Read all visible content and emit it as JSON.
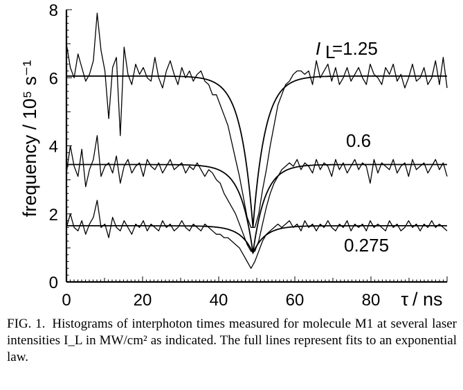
{
  "chart_data": {
    "type": "line",
    "title": "",
    "xlabel_symbol": "τ",
    "xlabel_unit": "/ ns",
    "ylabel": "frequency / 10⁵ s⁻¹",
    "xlim": [
      0,
      100
    ],
    "ylim": [
      0,
      8
    ],
    "xticks": [
      "0",
      "20",
      "40",
      "60",
      "80"
    ],
    "xtick_values": [
      0,
      20,
      40,
      60,
      80
    ],
    "yticks": [
      "0",
      "2",
      "4",
      "6",
      "8"
    ],
    "ytick_values": [
      0,
      2,
      4,
      6,
      8
    ],
    "series_label_prefix": "I",
    "series_label_sub": "L",
    "series": [
      {
        "name": "1.25",
        "label_text": "=1.25",
        "fit": {
          "baseline": 6.05,
          "center": 49,
          "depth": 4.45,
          "tau": 3.2
        },
        "data": [
          7.0,
          6.3,
          6.0,
          6.7,
          6.3,
          5.9,
          6.1,
          6.5,
          7.9,
          6.8,
          6.2,
          4.8,
          6.3,
          6.6,
          4.3,
          6.9,
          6.1,
          5.8,
          6.4,
          6.1,
          6.3,
          6.0,
          5.9,
          6.6,
          6.0,
          5.7,
          6.2,
          6.5,
          6.1,
          5.8,
          6.3,
          6.0,
          6.2,
          5.9,
          6.1,
          6.2,
          5.9,
          5.8,
          5.5,
          5.5,
          5.2,
          4.9,
          4.6,
          4.1,
          3.6,
          3.1,
          2.5,
          1.9,
          1.6,
          1.6,
          2.0,
          2.7,
          3.3,
          4.0,
          4.6,
          5.2,
          5.5,
          5.8,
          5.9,
          6.1,
          6.2,
          6.2,
          6.1,
          6.2,
          5.8,
          6.5,
          6.0,
          6.2,
          6.4,
          5.9,
          6.3,
          5.8,
          6.0,
          6.3,
          5.9,
          6.1,
          6.3,
          6.0,
          5.8,
          6.4,
          6.1,
          6.0,
          5.8,
          6.3,
          6.1,
          6.4,
          5.9,
          6.1,
          5.7,
          6.0,
          6.4,
          5.9,
          6.0,
          6.3,
          5.8,
          6.0,
          6.5,
          5.8,
          6.6,
          5.7
        ]
      },
      {
        "name": "0.6",
        "label_text": "0.6",
        "fit": {
          "baseline": 3.45,
          "center": 49,
          "depth": 2.6,
          "tau": 3.2
        },
        "data": [
          3.2,
          4.0,
          3.4,
          3.1,
          3.9,
          2.8,
          3.3,
          3.6,
          4.3,
          3.1,
          3.4,
          3.5,
          3.2,
          3.7,
          2.9,
          3.4,
          3.6,
          3.2,
          3.4,
          3.5,
          3.1,
          3.6,
          3.4,
          3.3,
          3.5,
          3.2,
          3.4,
          3.6,
          3.3,
          3.4,
          3.5,
          3.2,
          3.4,
          3.3,
          3.5,
          3.3,
          3.1,
          3.3,
          3.2,
          3.0,
          2.9,
          2.6,
          2.4,
          2.2,
          2.0,
          1.7,
          1.4,
          1.1,
          0.9,
          0.9,
          1.2,
          1.7,
          2.2,
          2.6,
          2.9,
          3.1,
          3.3,
          3.4,
          3.5,
          3.4,
          3.6,
          3.3,
          3.5,
          3.4,
          3.2,
          3.6,
          3.3,
          3.5,
          3.4,
          3.1,
          3.6,
          3.3,
          3.5,
          3.2,
          3.4,
          3.6,
          3.3,
          3.5,
          3.4,
          2.9,
          3.6,
          3.2,
          3.5,
          3.4,
          3.3,
          3.6,
          3.2,
          3.4,
          3.5,
          3.1,
          3.6,
          3.3,
          3.4,
          3.5,
          3.2,
          3.4,
          3.6,
          3.3,
          3.5,
          3.1
        ]
      },
      {
        "name": "0.275",
        "label_text": "0.275",
        "fit": {
          "baseline": 1.65,
          "center": 49,
          "depth": 0.8,
          "tau": 3.2
        },
        "data": [
          1.6,
          2.0,
          1.6,
          1.5,
          1.8,
          1.4,
          1.7,
          1.9,
          2.4,
          1.6,
          1.7,
          1.3,
          1.9,
          1.6,
          1.5,
          1.8,
          1.6,
          1.4,
          1.7,
          1.6,
          1.8,
          1.5,
          1.7,
          1.6,
          1.5,
          1.8,
          1.6,
          1.7,
          1.5,
          1.6,
          1.8,
          1.6,
          1.5,
          1.7,
          1.6,
          1.5,
          1.7,
          1.6,
          1.5,
          1.4,
          1.4,
          1.3,
          1.3,
          1.2,
          1.1,
          1.0,
          0.8,
          0.6,
          0.4,
          0.6,
          0.9,
          1.2,
          1.4,
          1.5,
          1.6,
          1.7,
          1.6,
          1.7,
          1.8,
          1.6,
          1.7,
          1.5,
          1.8,
          1.6,
          1.7,
          1.5,
          1.7,
          1.6,
          1.8,
          1.6,
          1.5,
          1.7,
          1.6,
          1.8,
          1.5,
          1.7,
          1.6,
          1.7,
          1.5,
          1.8,
          1.6,
          1.7,
          1.6,
          1.5,
          1.8,
          1.6,
          1.7,
          1.5,
          1.6,
          1.8,
          1.6,
          1.7,
          1.5,
          1.7,
          1.6,
          1.8,
          1.6,
          1.7,
          1.6,
          1.5
        ]
      }
    ]
  },
  "caption": {
    "label": "FIG. 1.",
    "text": "Histograms of interphoton times measured for molecule M1 at several laser intensities I_L in MW/cm² as indicated. The full lines represent fits to an exponential law."
  }
}
